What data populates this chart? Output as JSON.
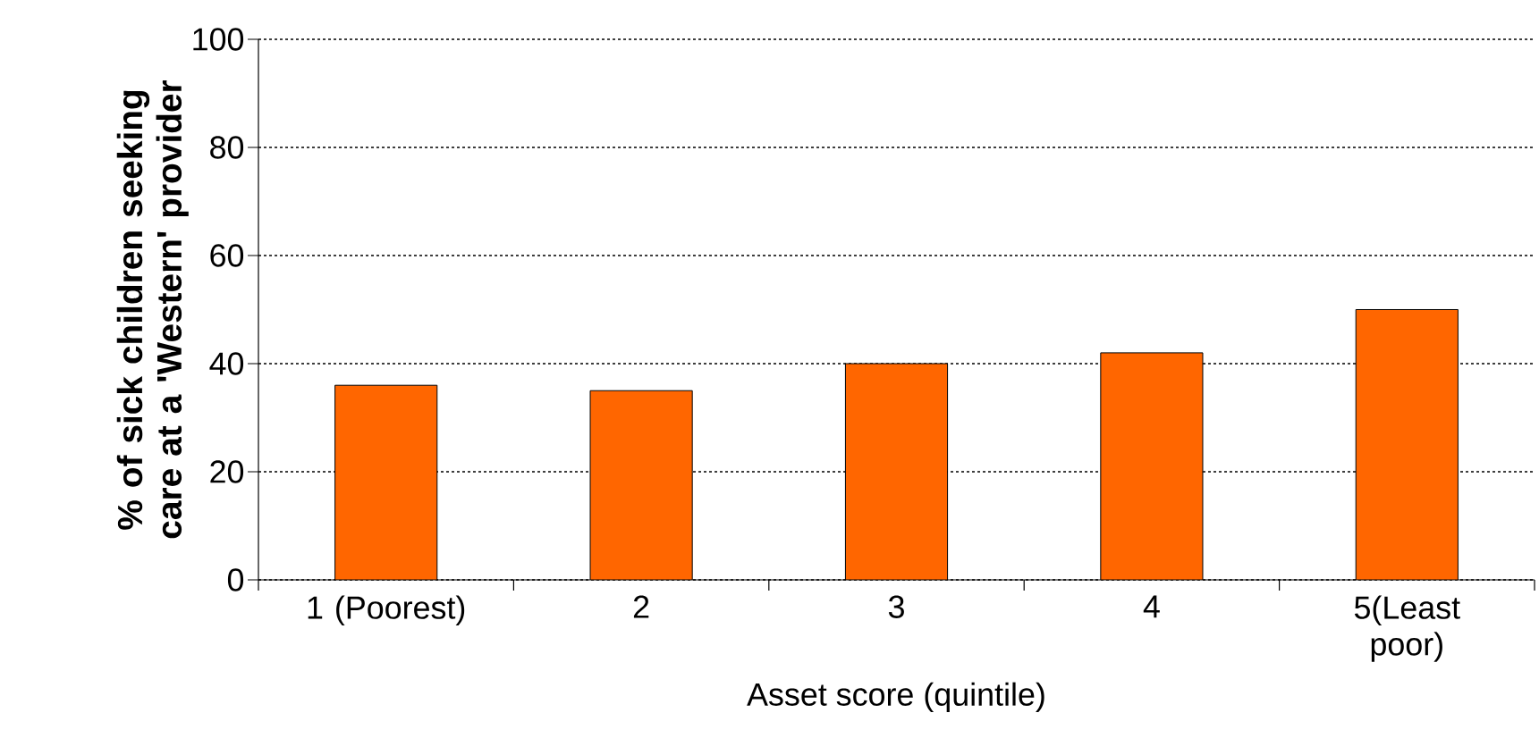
{
  "chart_data": {
    "type": "bar",
    "xlabel": "Asset score (quintile)",
    "ylabel": "% of sick children seeking care at a 'Western' provider",
    "categories": [
      "1 (Poorest)",
      "2",
      "3",
      "4",
      "5(Least poor)"
    ],
    "values": [
      36,
      35,
      40,
      42,
      50
    ],
    "color": "#ff6600",
    "ylim": [
      0,
      100
    ],
    "yticks": [
      0,
      20,
      40,
      60,
      80,
      100
    ],
    "grid": "y"
  }
}
